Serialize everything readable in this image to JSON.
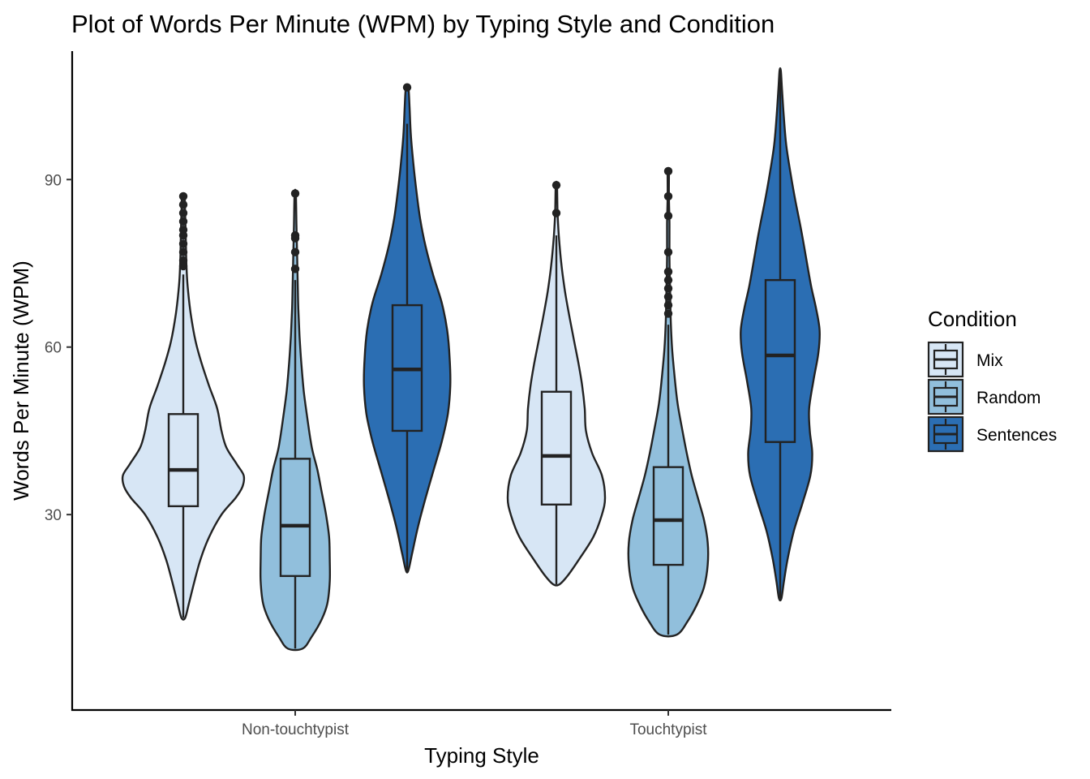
{
  "chart_data": {
    "type": "violin",
    "title": "Plot of Words Per Minute (WPM) by Typing Style and Condition",
    "xlabel": "Typing Style",
    "ylabel": "Words Per Minute (WPM)",
    "ylim": [
      -5,
      113
    ],
    "yticks": [
      30,
      60,
      90
    ],
    "grid": false,
    "legend": {
      "title": "Condition",
      "position": "right",
      "entries": [
        "Mix",
        "Random",
        "Sentences"
      ]
    },
    "categories": [
      "Non-touchtypist",
      "Touchtypist"
    ],
    "series": [
      {
        "name": "Mix",
        "color": "#d7e6f5",
        "groups": [
          {
            "category": "Non-touchtypist",
            "min": 11.5,
            "q1": 31.5,
            "median": 38,
            "q3": 48,
            "max": 87,
            "whisker_low": 11.5,
            "whisker_high": 73,
            "outliers": [
              74.5,
              75.5,
              77,
              78.5,
              80,
              81,
              82.5,
              84,
              85.5,
              87
            ],
            "density": [
              [
                11.5,
                0.03
              ],
              [
                14,
                0.09
              ],
              [
                18,
                0.18
              ],
              [
                22,
                0.28
              ],
              [
                26,
                0.42
              ],
              [
                30,
                0.62
              ],
              [
                33,
                0.85
              ],
              [
                35,
                0.96
              ],
              [
                37,
                0.98
              ],
              [
                39,
                0.87
              ],
              [
                42,
                0.7
              ],
              [
                45,
                0.62
              ],
              [
                49,
                0.55
              ],
              [
                53,
                0.42
              ],
              [
                57,
                0.3
              ],
              [
                61,
                0.2
              ],
              [
                66,
                0.12
              ],
              [
                71,
                0.07
              ],
              [
                75,
                0.05
              ],
              [
                80,
                0.04
              ],
              [
                84,
                0.03
              ],
              [
                87,
                0.02
              ]
            ]
          },
          {
            "category": "Touchtypist",
            "min": 17.5,
            "q1": 31.8,
            "median": 40.5,
            "q3": 52,
            "max": 89,
            "whisker_low": 17.5,
            "whisker_high": 80,
            "outliers": [
              84,
              89
            ],
            "density": [
              [
                17.5,
                0.05
              ],
              [
                19,
                0.18
              ],
              [
                22,
                0.37
              ],
              [
                26,
                0.6
              ],
              [
                30,
                0.74
              ],
              [
                33,
                0.79
              ],
              [
                37,
                0.74
              ],
              [
                41,
                0.58
              ],
              [
                45,
                0.48
              ],
              [
                49,
                0.46
              ],
              [
                53,
                0.42
              ],
              [
                57,
                0.36
              ],
              [
                61,
                0.29
              ],
              [
                65,
                0.22
              ],
              [
                70,
                0.14
              ],
              [
                75,
                0.08
              ],
              [
                80,
                0.04
              ],
              [
                84,
                0.02
              ],
              [
                89,
                0.01
              ]
            ]
          }
        ]
      },
      {
        "name": "Random",
        "color": "#91bfdc",
        "groups": [
          {
            "category": "Non-touchtypist",
            "min": 6,
            "q1": 19,
            "median": 28,
            "q3": 40,
            "max": 87.5,
            "whisker_low": 6,
            "whisker_high": 72,
            "outliers": [
              74,
              77,
              79.5,
              80,
              87.5
            ],
            "density": [
              [
                6,
                0.12
              ],
              [
                8,
                0.26
              ],
              [
                11,
                0.42
              ],
              [
                14,
                0.52
              ],
              [
                18,
                0.56
              ],
              [
                22,
                0.56
              ],
              [
                26,
                0.55
              ],
              [
                30,
                0.5
              ],
              [
                34,
                0.43
              ],
              [
                38,
                0.36
              ],
              [
                42,
                0.27
              ],
              [
                47,
                0.2
              ],
              [
                52,
                0.14
              ],
              [
                57,
                0.1
              ],
              [
                62,
                0.07
              ],
              [
                67,
                0.05
              ],
              [
                72,
                0.04
              ],
              [
                77,
                0.03
              ],
              [
                82,
                0.02
              ],
              [
                87.5,
                0.01
              ]
            ]
          },
          {
            "category": "Touchtypist",
            "min": 8.5,
            "q1": 21,
            "median": 29,
            "q3": 38.5,
            "max": 91.5,
            "whisker_low": 8.5,
            "whisker_high": 64,
            "outliers": [
              66,
              67.5,
              69,
              70.5,
              72,
              73.5,
              77,
              83.5,
              87,
              91.5
            ],
            "density": [
              [
                8.5,
                0.14
              ],
              [
                11,
                0.32
              ],
              [
                14,
                0.47
              ],
              [
                17,
                0.58
              ],
              [
                21,
                0.64
              ],
              [
                25,
                0.64
              ],
              [
                29,
                0.58
              ],
              [
                33,
                0.48
              ],
              [
                37,
                0.38
              ],
              [
                41,
                0.3
              ],
              [
                45,
                0.23
              ],
              [
                50,
                0.15
              ],
              [
                55,
                0.1
              ],
              [
                60,
                0.06
              ],
              [
                65,
                0.04
              ],
              [
                70,
                0.03
              ],
              [
                76,
                0.02
              ],
              [
                82,
                0.02
              ],
              [
                87,
                0.01
              ],
              [
                91.5,
                0.01
              ]
            ]
          }
        ]
      },
      {
        "name": "Sentences",
        "color": "#2b6eb3",
        "groups": [
          {
            "category": "Non-touchtypist",
            "min": 20,
            "q1": 45,
            "median": 56,
            "q3": 67.5,
            "max": 106.5,
            "whisker_low": 20,
            "whisker_high": 100,
            "outliers": [
              106.5
            ],
            "density": [
              [
                20,
                0.02
              ],
              [
                23,
                0.08
              ],
              [
                28,
                0.18
              ],
              [
                33,
                0.3
              ],
              [
                38,
                0.43
              ],
              [
                43,
                0.56
              ],
              [
                48,
                0.66
              ],
              [
                53,
                0.7
              ],
              [
                58,
                0.69
              ],
              [
                63,
                0.65
              ],
              [
                68,
                0.56
              ],
              [
                73,
                0.42
              ],
              [
                78,
                0.3
              ],
              [
                83,
                0.21
              ],
              [
                88,
                0.15
              ],
              [
                93,
                0.1
              ],
              [
                98,
                0.06
              ],
              [
                103,
                0.04
              ],
              [
                106.5,
                0.02
              ]
            ]
          },
          {
            "category": "Touchtypist",
            "min": 15,
            "q1": 43,
            "median": 58.5,
            "q3": 72,
            "max": 109.5,
            "whisker_low": 15,
            "whisker_high": 109.5,
            "outliers": [],
            "density": [
              [
                15,
                0.02
              ],
              [
                18,
                0.06
              ],
              [
                22,
                0.12
              ],
              [
                27,
                0.22
              ],
              [
                32,
                0.36
              ],
              [
                37,
                0.49
              ],
              [
                41,
                0.52
              ],
              [
                45,
                0.48
              ],
              [
                49,
                0.47
              ],
              [
                54,
                0.54
              ],
              [
                59,
                0.62
              ],
              [
                63,
                0.64
              ],
              [
                67,
                0.58
              ],
              [
                71,
                0.5
              ],
              [
                76,
                0.42
              ],
              [
                81,
                0.34
              ],
              [
                86,
                0.25
              ],
              [
                91,
                0.17
              ],
              [
                96,
                0.1
              ],
              [
                101,
                0.06
              ],
              [
                106,
                0.03
              ],
              [
                109.5,
                0.01
              ]
            ]
          }
        ]
      }
    ]
  }
}
